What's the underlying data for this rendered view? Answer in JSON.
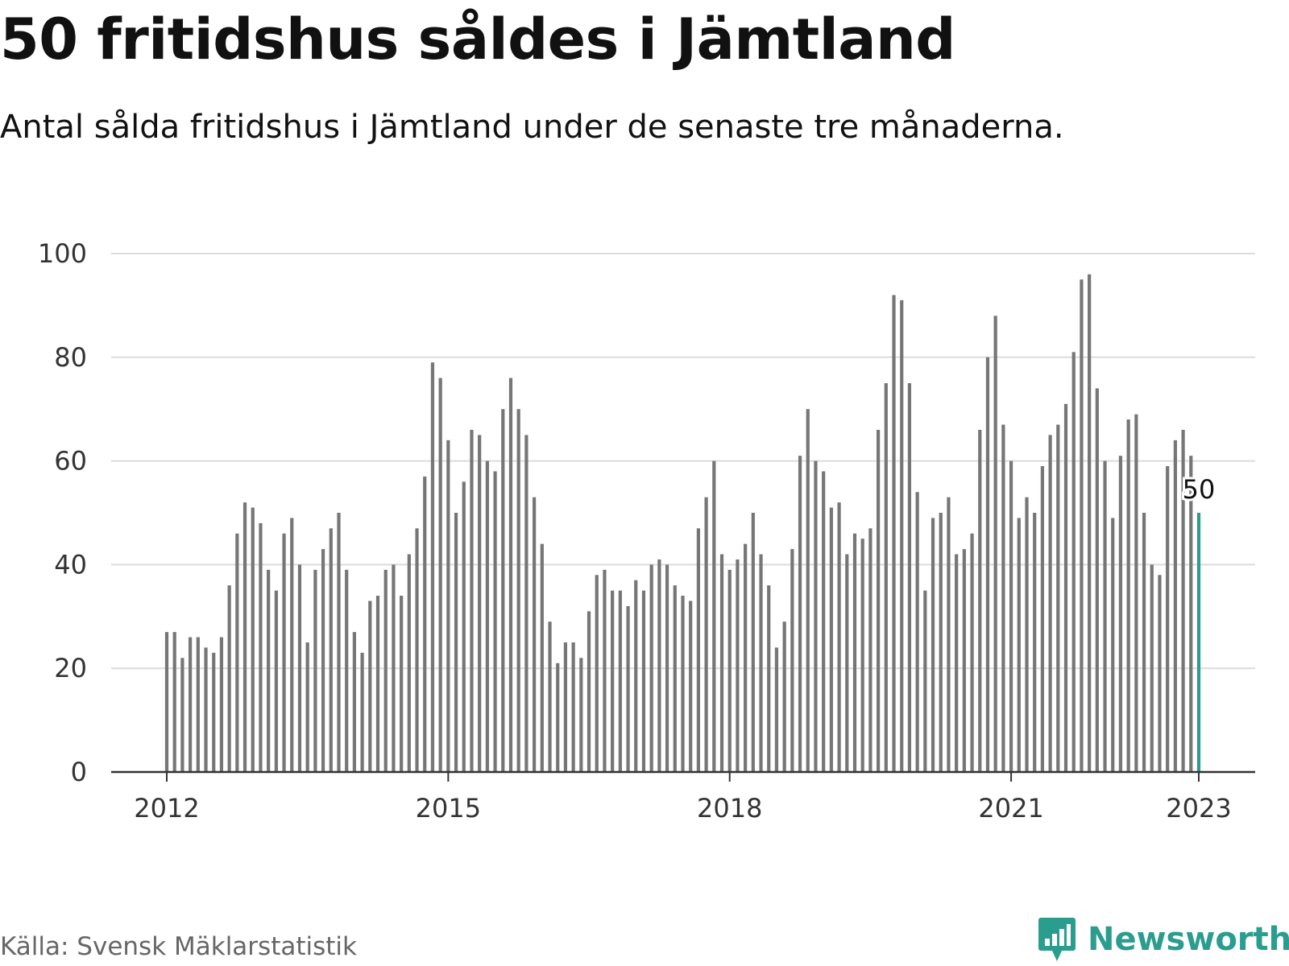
{
  "title": "50 fritidshus såldes i Jämtland",
  "subtitle": "Antal sålda fritidshus i Jämtland under de senaste tre månaderna.",
  "source": "Källa: Svensk Mäklarstatistik",
  "brand": "Newsworthy",
  "colors": {
    "bar": "#767676",
    "highlight": "#2a9d8f",
    "grid": "#dcdcdc",
    "axis": "#333333",
    "brand": "#2a9d8f"
  },
  "chart_data": {
    "type": "bar",
    "title": "50 fritidshus såldes i Jämtland",
    "subtitle": "Antal sålda fritidshus i Jämtland under de senaste tre månaderna.",
    "x_start": "2012-01",
    "x_end": "2023-01",
    "ylim": [
      0,
      100
    ],
    "y_ticks": [
      0,
      20,
      40,
      60,
      80,
      100
    ],
    "x_ticks": [
      "2012",
      "2015",
      "2018",
      "2021",
      "2023"
    ],
    "grid": true,
    "highlight_label": "50",
    "values": [
      27,
      27,
      22,
      26,
      26,
      24,
      23,
      26,
      36,
      46,
      52,
      51,
      48,
      39,
      35,
      46,
      49,
      40,
      25,
      39,
      43,
      47,
      50,
      39,
      27,
      23,
      33,
      34,
      39,
      40,
      34,
      42,
      47,
      57,
      79,
      76,
      64,
      50,
      56,
      66,
      65,
      60,
      58,
      70,
      76,
      70,
      65,
      53,
      44,
      29,
      21,
      25,
      25,
      22,
      31,
      38,
      39,
      35,
      35,
      32,
      37,
      35,
      40,
      41,
      40,
      36,
      34,
      33,
      47,
      53,
      60,
      42,
      39,
      41,
      44,
      50,
      42,
      36,
      24,
      29,
      43,
      61,
      70,
      60,
      58,
      51,
      52,
      42,
      46,
      45,
      47,
      66,
      75,
      92,
      91,
      75,
      54,
      35,
      49,
      50,
      53,
      42,
      43,
      46,
      66,
      80,
      88,
      67,
      60,
      49,
      53,
      50,
      59,
      65,
      67,
      71,
      81,
      95,
      96,
      74,
      60,
      49,
      61,
      68,
      69,
      50,
      40,
      38,
      59,
      64,
      66,
      61,
      50
    ]
  }
}
